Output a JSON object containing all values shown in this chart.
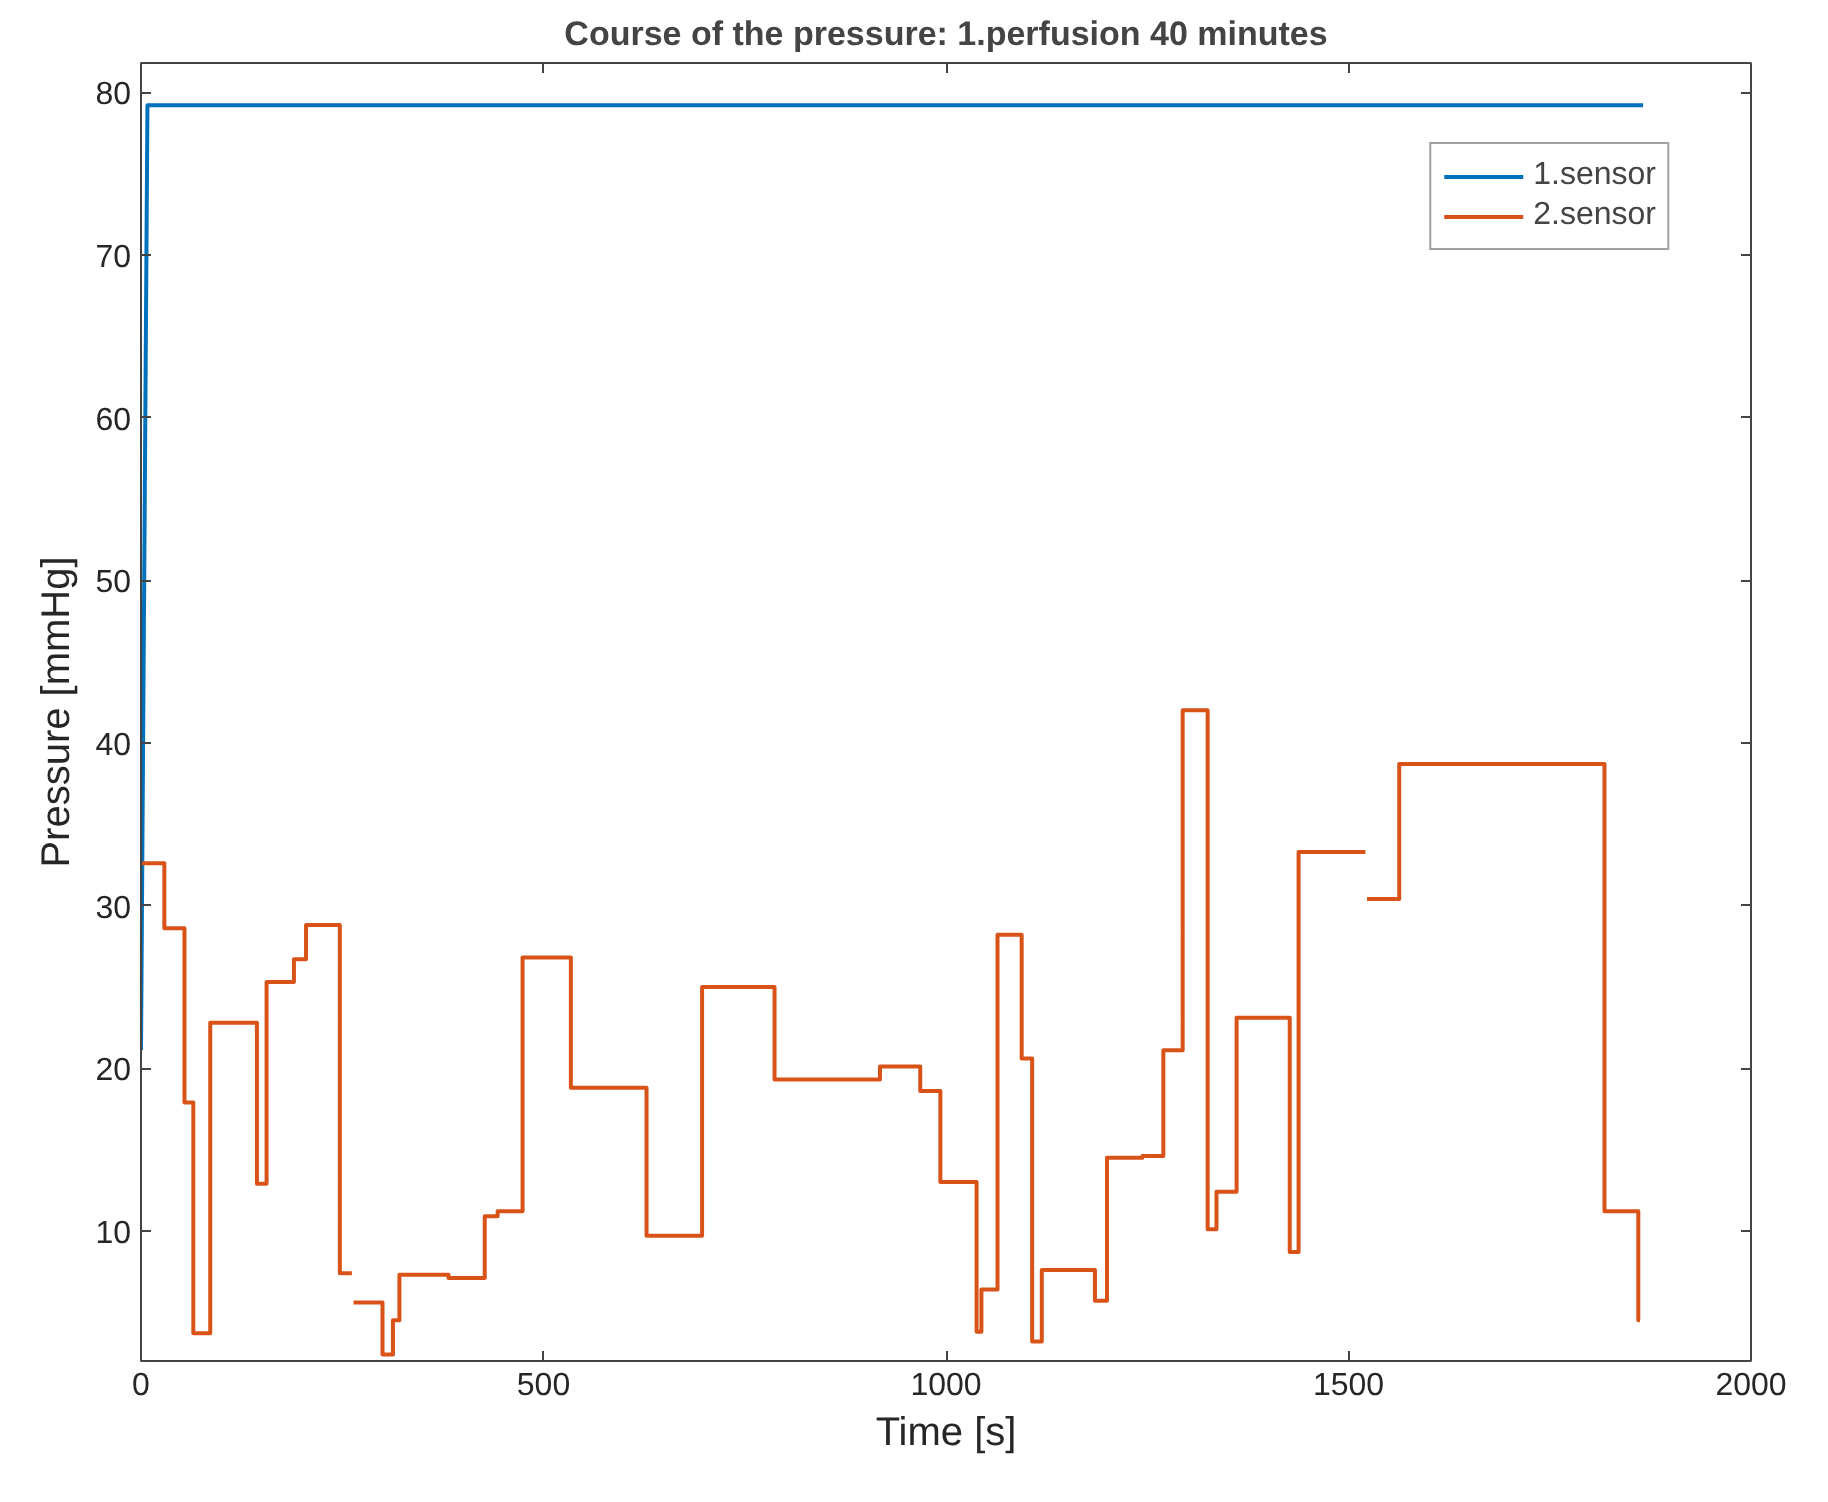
{
  "chart_data": {
    "type": "line",
    "title": "Course of the pressure: 1.perfusion 40 minutes",
    "xlabel": "Time [s]",
    "ylabel": "Pressure [mmHg]",
    "xlim": [
      0,
      2000
    ],
    "ylim": [
      2,
      81.8
    ],
    "xticks": [
      0,
      500,
      1000,
      1500,
      2000
    ],
    "yticks": [
      10,
      20,
      30,
      40,
      50,
      60,
      70,
      80
    ],
    "grid": false,
    "legend": "top right",
    "series": [
      {
        "name": "1.sensor",
        "color": "#0072bd",
        "x": [
          0,
          8,
          1866
        ],
        "values": [
          21.1,
          79.2,
          79.2
        ]
      },
      {
        "name": "2.sensor",
        "type": "step",
        "color": "#d95319",
        "x": [
          0,
          29,
          54,
          65,
          86,
          144,
          156,
          190,
          205,
          247,
          262,
          264,
          300,
          313,
          321,
          382,
          427,
          443,
          474,
          534,
          628,
          697,
          787,
          918,
          968,
          993,
          1038,
          1044,
          1064,
          1094,
          1107,
          1119,
          1185,
          1200,
          1244,
          1270,
          1294,
          1325,
          1336,
          1361,
          1427,
          1438,
          1521,
          1523,
          1563,
          1818,
          1860,
          1862
        ],
        "values": [
          32.6,
          28.6,
          17.9,
          3.7,
          22.8,
          12.9,
          25.3,
          26.7,
          28.8,
          7.4,
          null,
          5.6,
          2.4,
          4.5,
          7.3,
          7.1,
          10.9,
          11.2,
          26.8,
          18.8,
          9.7,
          25.0,
          19.3,
          20.1,
          18.6,
          13.0,
          3.8,
          6.4,
          28.2,
          20.6,
          3.2,
          7.6,
          5.7,
          14.5,
          14.6,
          21.1,
          42.0,
          10.1,
          12.4,
          23.1,
          8.7,
          33.3,
          null,
          30.4,
          38.7,
          11.2,
          4.5,
          4.5
        ]
      }
    ]
  }
}
